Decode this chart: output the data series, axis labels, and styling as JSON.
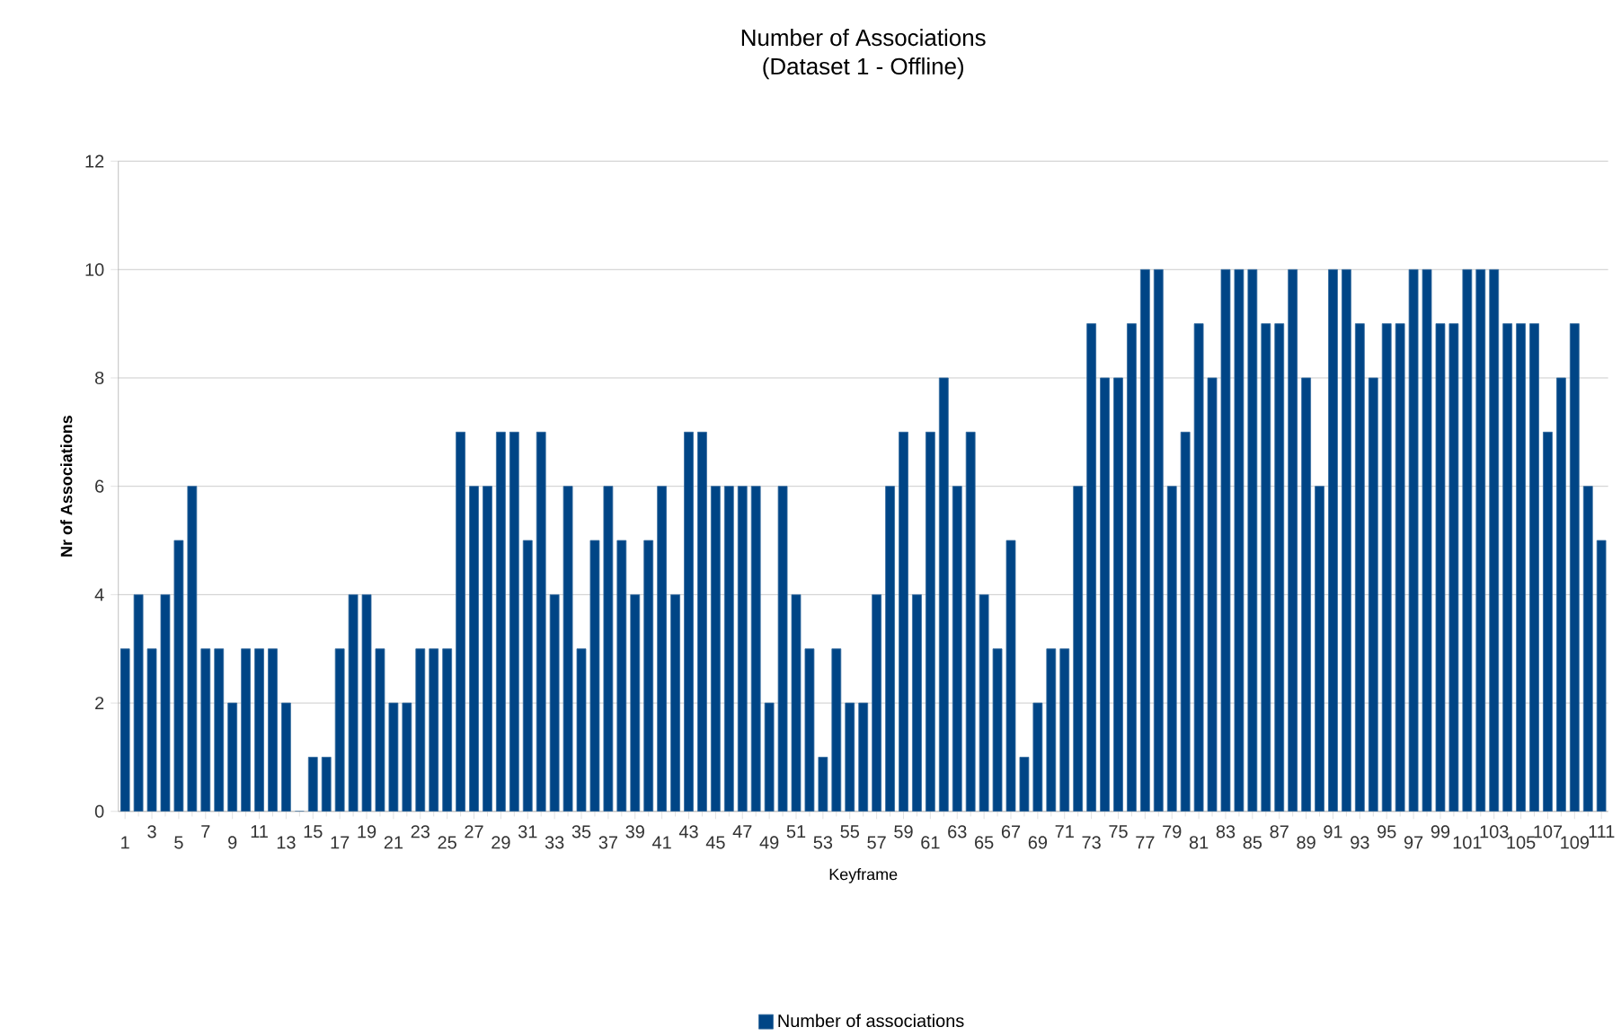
{
  "chart_data": {
    "type": "bar",
    "title": "Number of Associations",
    "subtitle": "(Dataset 1 - Offline)",
    "xlabel": "Keyframe",
    "ylabel": "Nr of Associations",
    "categories": [
      "1",
      null,
      "3",
      null,
      "5",
      null,
      "7",
      null,
      "9",
      null,
      "11",
      null,
      "13",
      null,
      "15",
      null,
      "17",
      null,
      "19",
      null,
      "21",
      null,
      "23",
      null,
      "25",
      null,
      "27",
      null,
      "29",
      null,
      "31",
      null,
      "33",
      null,
      "35",
      null,
      "37",
      null,
      "39",
      null,
      "41",
      null,
      "43",
      null,
      "45",
      null,
      "47",
      null,
      "49",
      null,
      "51",
      null,
      "53",
      null,
      "55",
      null,
      "57",
      null,
      "59",
      null,
      "61",
      null,
      "63",
      null,
      "65",
      null,
      "67",
      null,
      "69",
      null,
      "71",
      null,
      "73",
      null,
      "75",
      null,
      "77",
      null,
      "79",
      null,
      "81",
      null,
      "83",
      null,
      "85",
      null,
      "87",
      null,
      "89",
      null,
      "91",
      null,
      "93",
      null,
      "95",
      null,
      "97",
      null,
      "99",
      null,
      "101",
      null,
      "103",
      null,
      "105",
      null,
      "107",
      null,
      "109",
      null,
      "111"
    ],
    "series": [
      {
        "name": "Number of associations",
        "color": "#004586",
        "values": [
          3,
          4,
          3,
          4,
          5,
          6,
          3,
          3,
          2,
          3,
          3,
          3,
          2,
          0,
          1,
          1,
          3,
          4,
          4,
          3,
          2,
          2,
          3,
          3,
          3,
          7,
          6,
          6,
          7,
          7,
          5,
          7,
          4,
          6,
          3,
          5,
          6,
          5,
          4,
          5,
          6,
          4,
          7,
          7,
          6,
          6,
          6,
          6,
          2,
          6,
          4,
          3,
          1,
          3,
          2,
          2,
          4,
          6,
          7,
          4,
          7,
          8,
          6,
          7,
          4,
          3,
          5,
          1,
          2,
          3,
          3,
          6,
          9,
          8,
          8,
          9,
          10,
          10,
          6,
          7,
          9,
          8,
          10,
          10,
          10,
          9,
          9,
          10,
          8,
          6,
          10,
          10,
          9,
          8,
          9,
          9,
          10,
          10,
          9,
          9,
          10,
          10,
          10,
          9,
          9,
          9,
          7,
          8,
          9,
          6,
          5
        ]
      }
    ],
    "ylim": [
      0,
      12
    ],
    "yticks": [
      0,
      2,
      4,
      6,
      8,
      10,
      12
    ],
    "grid": "y",
    "legend": "bottom"
  }
}
